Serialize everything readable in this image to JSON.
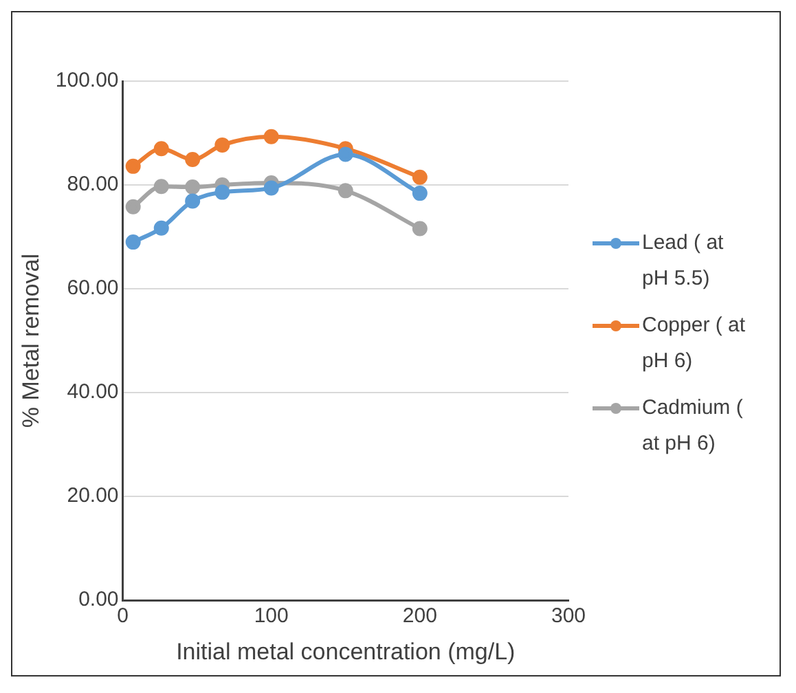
{
  "chart_data": {
    "type": "line",
    "xlabel": "Initial metal concentration (mg/L)",
    "ylabel": "% Metal removal",
    "x": [
      7,
      26,
      47,
      67,
      100,
      150,
      200
    ],
    "series": [
      {
        "name": "Lead ( at pH 5.5)",
        "color": "#5b9bd5",
        "values": [
          69.0,
          71.7,
          76.9,
          78.6,
          79.4,
          85.9,
          78.4
        ]
      },
      {
        "name": "Copper ( at pH 6)",
        "color": "#ed7d31",
        "values": [
          83.6,
          87.0,
          84.9,
          87.7,
          89.3,
          87.0,
          81.5
        ]
      },
      {
        "name": "Cadmium ( at pH 6)",
        "color": "#a5a5a5",
        "values": [
          75.8,
          79.7,
          79.6,
          80.0,
          80.4,
          78.9,
          71.6
        ]
      }
    ],
    "xlim": [
      0,
      300
    ],
    "xticks": [
      0,
      100,
      200,
      300
    ],
    "ylim": [
      0,
      100
    ],
    "yticks": [
      {
        "value": 0,
        "label": "0.00"
      },
      {
        "value": 20,
        "label": "20.00"
      },
      {
        "value": 40,
        "label": "40.00"
      },
      {
        "value": 60,
        "label": "60.00"
      },
      {
        "value": 80,
        "label": "80.00"
      },
      {
        "value": 100,
        "label": "100.00"
      }
    ],
    "grid": "y",
    "legend": "right",
    "marker": "circle",
    "line_style": "solid"
  }
}
